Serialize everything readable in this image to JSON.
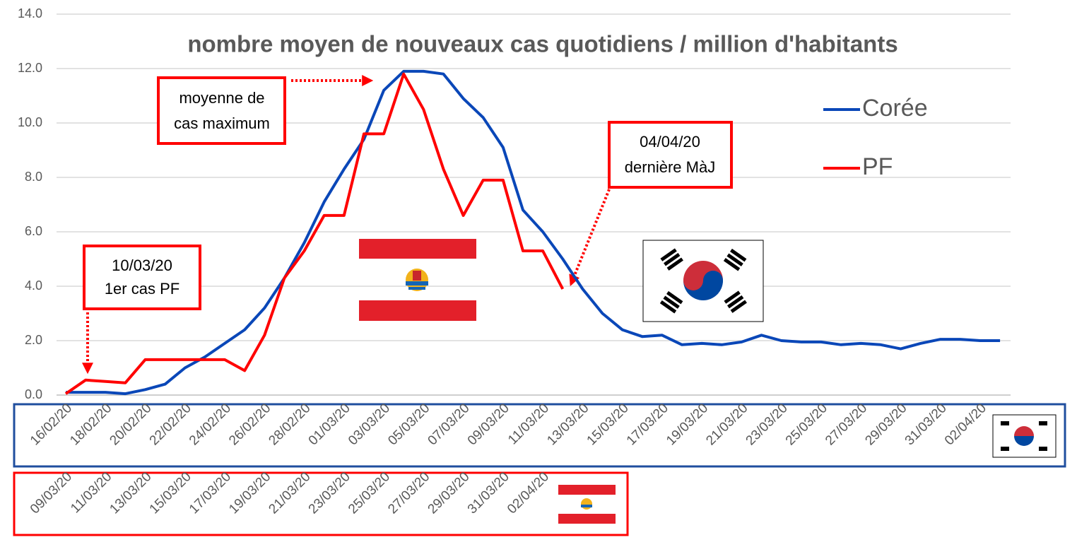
{
  "chart_data": {
    "type": "line",
    "title": "nombre moyen de nouveaux cas quotidiens / million d'habitants",
    "x_axes": [
      {
        "color": "#1f4e9e",
        "categories": [
          "16/02/20",
          null,
          "18/02/20",
          null,
          "20/02/20",
          null,
          "22/02/20",
          null,
          "24/02/20",
          null,
          "26/02/20",
          null,
          "28/02/20",
          null,
          "01/03/20",
          null,
          "03/03/20",
          null,
          "05/03/20",
          null,
          "07/03/20",
          null,
          "09/03/20",
          null,
          "11/03/20",
          null,
          "13/03/20",
          null,
          "15/03/20",
          null,
          "17/03/20",
          null,
          "19/03/20",
          null,
          "21/03/20",
          null,
          "23/03/20",
          null,
          "25/03/20",
          null,
          "27/03/20",
          null,
          "29/03/20",
          null,
          "31/03/20",
          null,
          "02/04/20",
          null
        ]
      },
      {
        "color": "#ff0000",
        "categories": [
          "09/03/20",
          null,
          "11/03/20",
          null,
          "13/03/20",
          null,
          "15/03/20",
          null,
          "17/03/20",
          null,
          "19/03/20",
          null,
          "21/03/20",
          null,
          "23/03/20",
          null,
          "25/03/20",
          null,
          "27/03/20",
          null,
          "29/03/20",
          null,
          "31/03/20",
          null,
          "02/04/20",
          null
        ]
      }
    ],
    "series": [
      {
        "name": "Corée",
        "color": "#0a47b8",
        "x_axis": 0,
        "values": [
          0.1,
          0.1,
          0.1,
          0.05,
          0.2,
          0.4,
          1.0,
          1.4,
          1.9,
          2.4,
          3.2,
          4.3,
          5.6,
          7.1,
          8.3,
          9.4,
          11.2,
          11.9,
          11.9,
          11.8,
          10.9,
          10.2,
          9.1,
          6.8,
          6.0,
          5.0,
          3.9,
          3.0,
          2.4,
          2.15,
          2.2,
          1.85,
          1.9,
          1.85,
          1.95,
          2.2,
          2.0,
          1.95,
          1.95,
          1.85,
          1.9,
          1.85,
          1.7,
          1.9,
          2.05,
          2.05,
          2.0,
          2.0
        ]
      },
      {
        "name": "PF",
        "color": "#ff0000",
        "x_axis": 1,
        "values": [
          0.05,
          0.55,
          0.5,
          0.45,
          1.3,
          1.3,
          1.3,
          1.3,
          1.3,
          0.9,
          2.2,
          4.3,
          5.3,
          6.6,
          6.6,
          9.6,
          9.6,
          11.8,
          10.5,
          8.3,
          6.6,
          7.9,
          7.9,
          5.3,
          5.3,
          3.9
        ]
      }
    ],
    "ylim": [
      0,
      14
    ],
    "yticks": [
      {
        "value": 0,
        "label": "0.0"
      },
      {
        "value": 2,
        "label": "2.0"
      },
      {
        "value": 4,
        "label": "4.0"
      },
      {
        "value": 6,
        "label": "6.0"
      },
      {
        "value": 8,
        "label": "8.0"
      },
      {
        "value": 10,
        "label": "10.0"
      },
      {
        "value": 12,
        "label": "12.0"
      },
      {
        "value": 14,
        "label": "14.0"
      }
    ],
    "grid": true,
    "annotations": [
      {
        "lines": [
          "10/03/20",
          "1er cas PF"
        ]
      },
      {
        "lines": [
          "moyenne de",
          "cas maximum"
        ]
      },
      {
        "lines": [
          "04/04/20",
          "dernière MàJ"
        ]
      }
    ]
  }
}
